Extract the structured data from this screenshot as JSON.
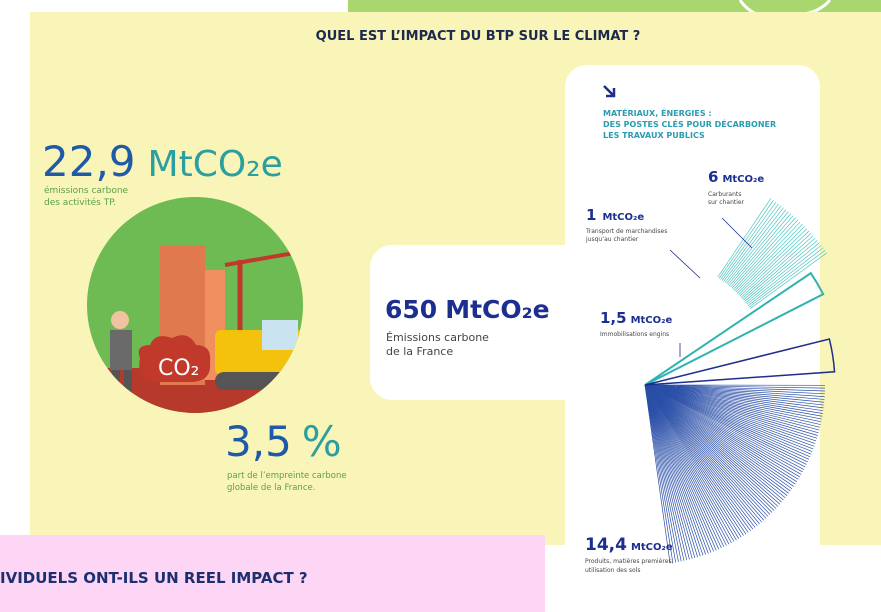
{
  "header": {
    "title": "QUEL EST L’IMPACT DU BTP SUR LE CLIMAT ?"
  },
  "tp_emissions": {
    "number": "22,9",
    "unit": "MtCO₂e",
    "caption": [
      "émissions carbone",
      "des activités TP."
    ]
  },
  "share": {
    "number": "3,5",
    "unit": "%",
    "caption": [
      "part de l’empreinte carbone",
      "globale de la France."
    ]
  },
  "illustration": {
    "label": "CO₂"
  },
  "france": {
    "number": "650",
    "unit": "MtCO₂e",
    "caption": [
      "Émissions carbone",
      "de la France"
    ]
  },
  "breakdown": {
    "title": [
      "MATÉRIAUX, ÉNERGIES :",
      "DES POSTES CLÉS POUR DÉCARBONER",
      "LES TRAVAUX PUBLICS"
    ],
    "items": [
      {
        "number": "6",
        "unit": "MtCO₂e",
        "caption": [
          "Carburants",
          "sur chantier"
        ]
      },
      {
        "number": "1",
        "unit": "MtCO₂e",
        "caption": [
          "Transport de marchandises",
          "jusqu’au chantier"
        ]
      },
      {
        "number": "1,5",
        "unit": "MtCO₂e",
        "caption": [
          "Immobilisations engins"
        ]
      },
      {
        "number": "14,4",
        "unit": "MtCO₂e",
        "caption": [
          "Produits, matières premières,",
          "utilisation des sols"
        ]
      }
    ]
  },
  "footer": {
    "question": "IVIDUELS ONT-ILS UN REEL IMPACT ?"
  }
}
